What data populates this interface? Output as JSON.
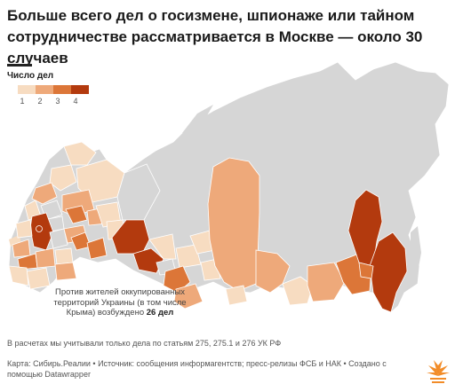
{
  "header": {
    "title": "Больше всего дел о госизмене, шпионаже или тайном сотрудничестве рассматривается в Москве — около 30 случаев"
  },
  "legend": {
    "title": "Число дел",
    "items": [
      {
        "label": "1",
        "color": "#f7dcc1"
      },
      {
        "label": "2",
        "color": "#eea97a"
      },
      {
        "label": "3",
        "color": "#dc7638"
      },
      {
        "label": "4",
        "color": "#b33a0e"
      }
    ]
  },
  "map": {
    "colors": {
      "no_data": "#d6d6d6",
      "level_1": "#f7dcc1",
      "level_2": "#eea97a",
      "level_3": "#dc7638",
      "level_4": "#b33a0e",
      "border": "#ffffff"
    }
  },
  "annotation": {
    "text": "Против жителей оккупированных территорий Украины (в том числе Крыма) возбуждено",
    "highlight": "26 дел"
  },
  "footnote": "В расчетах мы учитывали только дела по статьям 275, 275.1 и 276 УК РФ",
  "credit": "Карта: Сибирь.Реалии • Источник: сообщения информагентств; пресс-релизы ФСБ и НАК • Создано с помощью Datawrapper",
  "logo": {
    "icon": "radio-liberty-icon",
    "color": "#f28c28"
  }
}
